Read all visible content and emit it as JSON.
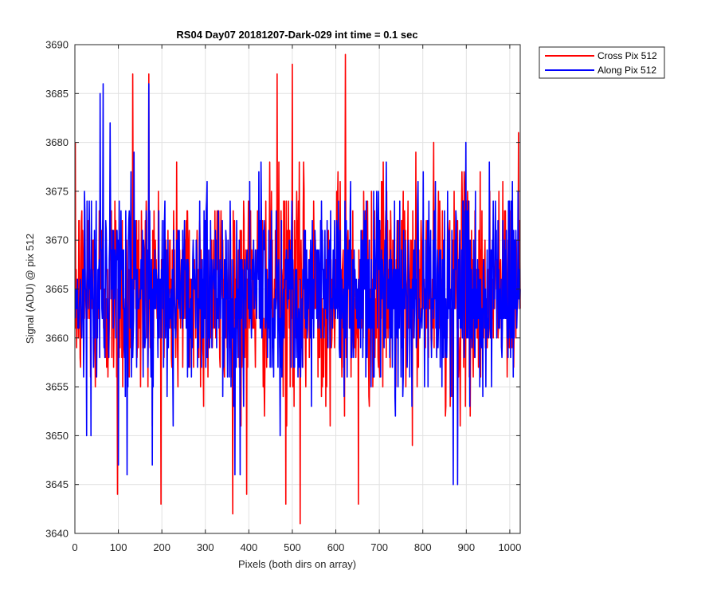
{
  "chart_data": {
    "type": "line",
    "title": "RS04 Day07 20181207-Dark-029 int time = 0.1 sec",
    "xlabel": "Pixels (both dirs on array)",
    "ylabel": "Signal (ADU) @ pix 512",
    "xlim": [
      0,
      1024
    ],
    "ylim": [
      3640,
      3690
    ],
    "xticks": [
      0,
      100,
      200,
      300,
      400,
      500,
      600,
      700,
      800,
      900,
      1000
    ],
    "yticks": [
      3640,
      3645,
      3650,
      3655,
      3660,
      3665,
      3670,
      3675,
      3680,
      3685,
      3690
    ],
    "xtick_labels": [
      "0",
      "100",
      "200",
      "300",
      "400",
      "500",
      "600",
      "700",
      "800",
      "900",
      "1000"
    ],
    "ytick_labels": [
      "3640",
      "3645",
      "3650",
      "3655",
      "3660",
      "3665",
      "3670",
      "3675",
      "3680",
      "3685",
      "3690"
    ],
    "grid": true,
    "legend_position": "outside-top-right",
    "series": [
      {
        "name": "Cross Pix 512",
        "color": "#ff0000",
        "x_start": 1,
        "x_step": 1,
        "n_points": 1024,
        "mean": 3665,
        "std": 5.5,
        "min": 3641,
        "max": 3689,
        "notable_points": [
          {
            "x": 98,
            "y": 3644
          },
          {
            "x": 133,
            "y": 3687
          },
          {
            "x": 170,
            "y": 3687
          },
          {
            "x": 395,
            "y": 3644
          },
          {
            "x": 465,
            "y": 3687
          },
          {
            "x": 485,
            "y": 3643
          },
          {
            "x": 500,
            "y": 3688
          },
          {
            "x": 518,
            "y": 3641
          },
          {
            "x": 622,
            "y": 3689
          },
          {
            "x": 652,
            "y": 3643
          },
          {
            "x": 1020,
            "y": 3681
          }
        ]
      },
      {
        "name": "Along Pix 512",
        "color": "#0000ff",
        "x_start": 1,
        "x_step": 1,
        "n_points": 1024,
        "mean": 3665,
        "std": 5.0,
        "min": 3645,
        "max": 3686,
        "notable_points": [
          {
            "x": 58,
            "y": 3685
          },
          {
            "x": 65,
            "y": 3686
          },
          {
            "x": 100,
            "y": 3647
          },
          {
            "x": 120,
            "y": 3646
          },
          {
            "x": 170,
            "y": 3686
          },
          {
            "x": 368,
            "y": 3646
          },
          {
            "x": 380,
            "y": 3646
          },
          {
            "x": 870,
            "y": 3645
          },
          {
            "x": 880,
            "y": 3645
          }
        ]
      }
    ]
  }
}
